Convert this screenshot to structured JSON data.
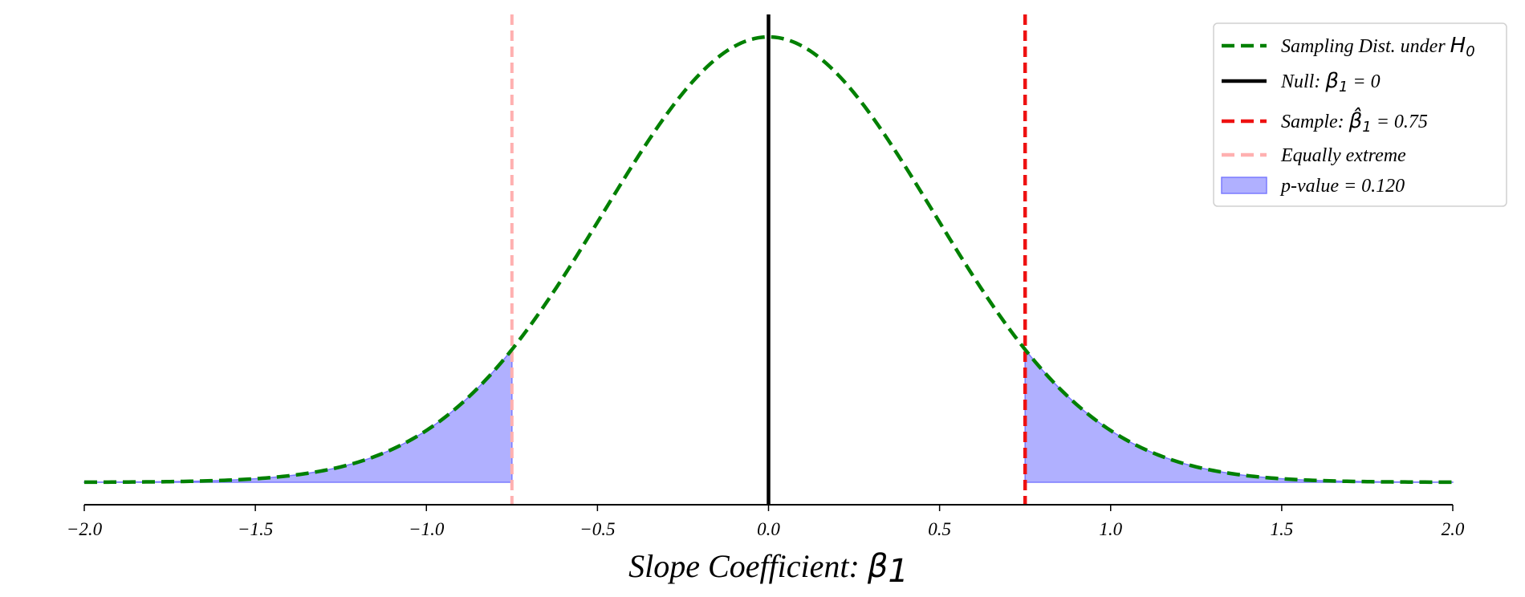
{
  "chart_data": {
    "type": "line",
    "title": "",
    "xlabel": "Slope Coefficient: ",
    "xlabel_symbol": "β",
    "xlabel_symbol_sub": "1",
    "ylabel": "",
    "xlim": [
      -2.0,
      2.0
    ],
    "x_ticks": [
      -2.0,
      -1.5,
      -1.0,
      -0.5,
      0.0,
      0.5,
      1.0,
      1.5,
      2.0
    ],
    "x_tick_labels": [
      "−2.0",
      "−1.5",
      "−1.0",
      "−0.5",
      "0.0",
      "0.5",
      "1.0",
      "1.5",
      "2.0"
    ],
    "grid": false,
    "y_axis_visible": false,
    "legend_position": "top-right",
    "distribution": {
      "kind": "normal",
      "mean": 0.0,
      "sd": 0.482,
      "color": "#008000",
      "style": "dashed"
    },
    "null_value": 0.0,
    "sample_estimate": 0.75,
    "equally_extreme": -0.75,
    "p_value": 0.12,
    "colors": {
      "distribution": "#008000",
      "null_line": "#000000",
      "sample_line": "#ee1111",
      "extreme_line": "#ffb0b0",
      "shade_fill": "#b0b0ff",
      "shade_edge": "#7a7aff"
    },
    "legend": [
      {
        "key": "dist",
        "text": "Sampling Dist. under ",
        "sym": "H",
        "sub": "0",
        "tail": ""
      },
      {
        "key": "null",
        "text": "Null: ",
        "sym": "β",
        "sub": "1",
        "tail": " = 0"
      },
      {
        "key": "sample",
        "text": "Sample: ",
        "sym": "β̂",
        "sub": "1",
        "tail": " = 0.75"
      },
      {
        "key": "extreme",
        "text": "Equally extreme",
        "sym": "",
        "sub": "",
        "tail": ""
      },
      {
        "key": "pvalue",
        "text": "p-value = 0.120",
        "sym": "",
        "sub": "",
        "tail": ""
      }
    ]
  }
}
